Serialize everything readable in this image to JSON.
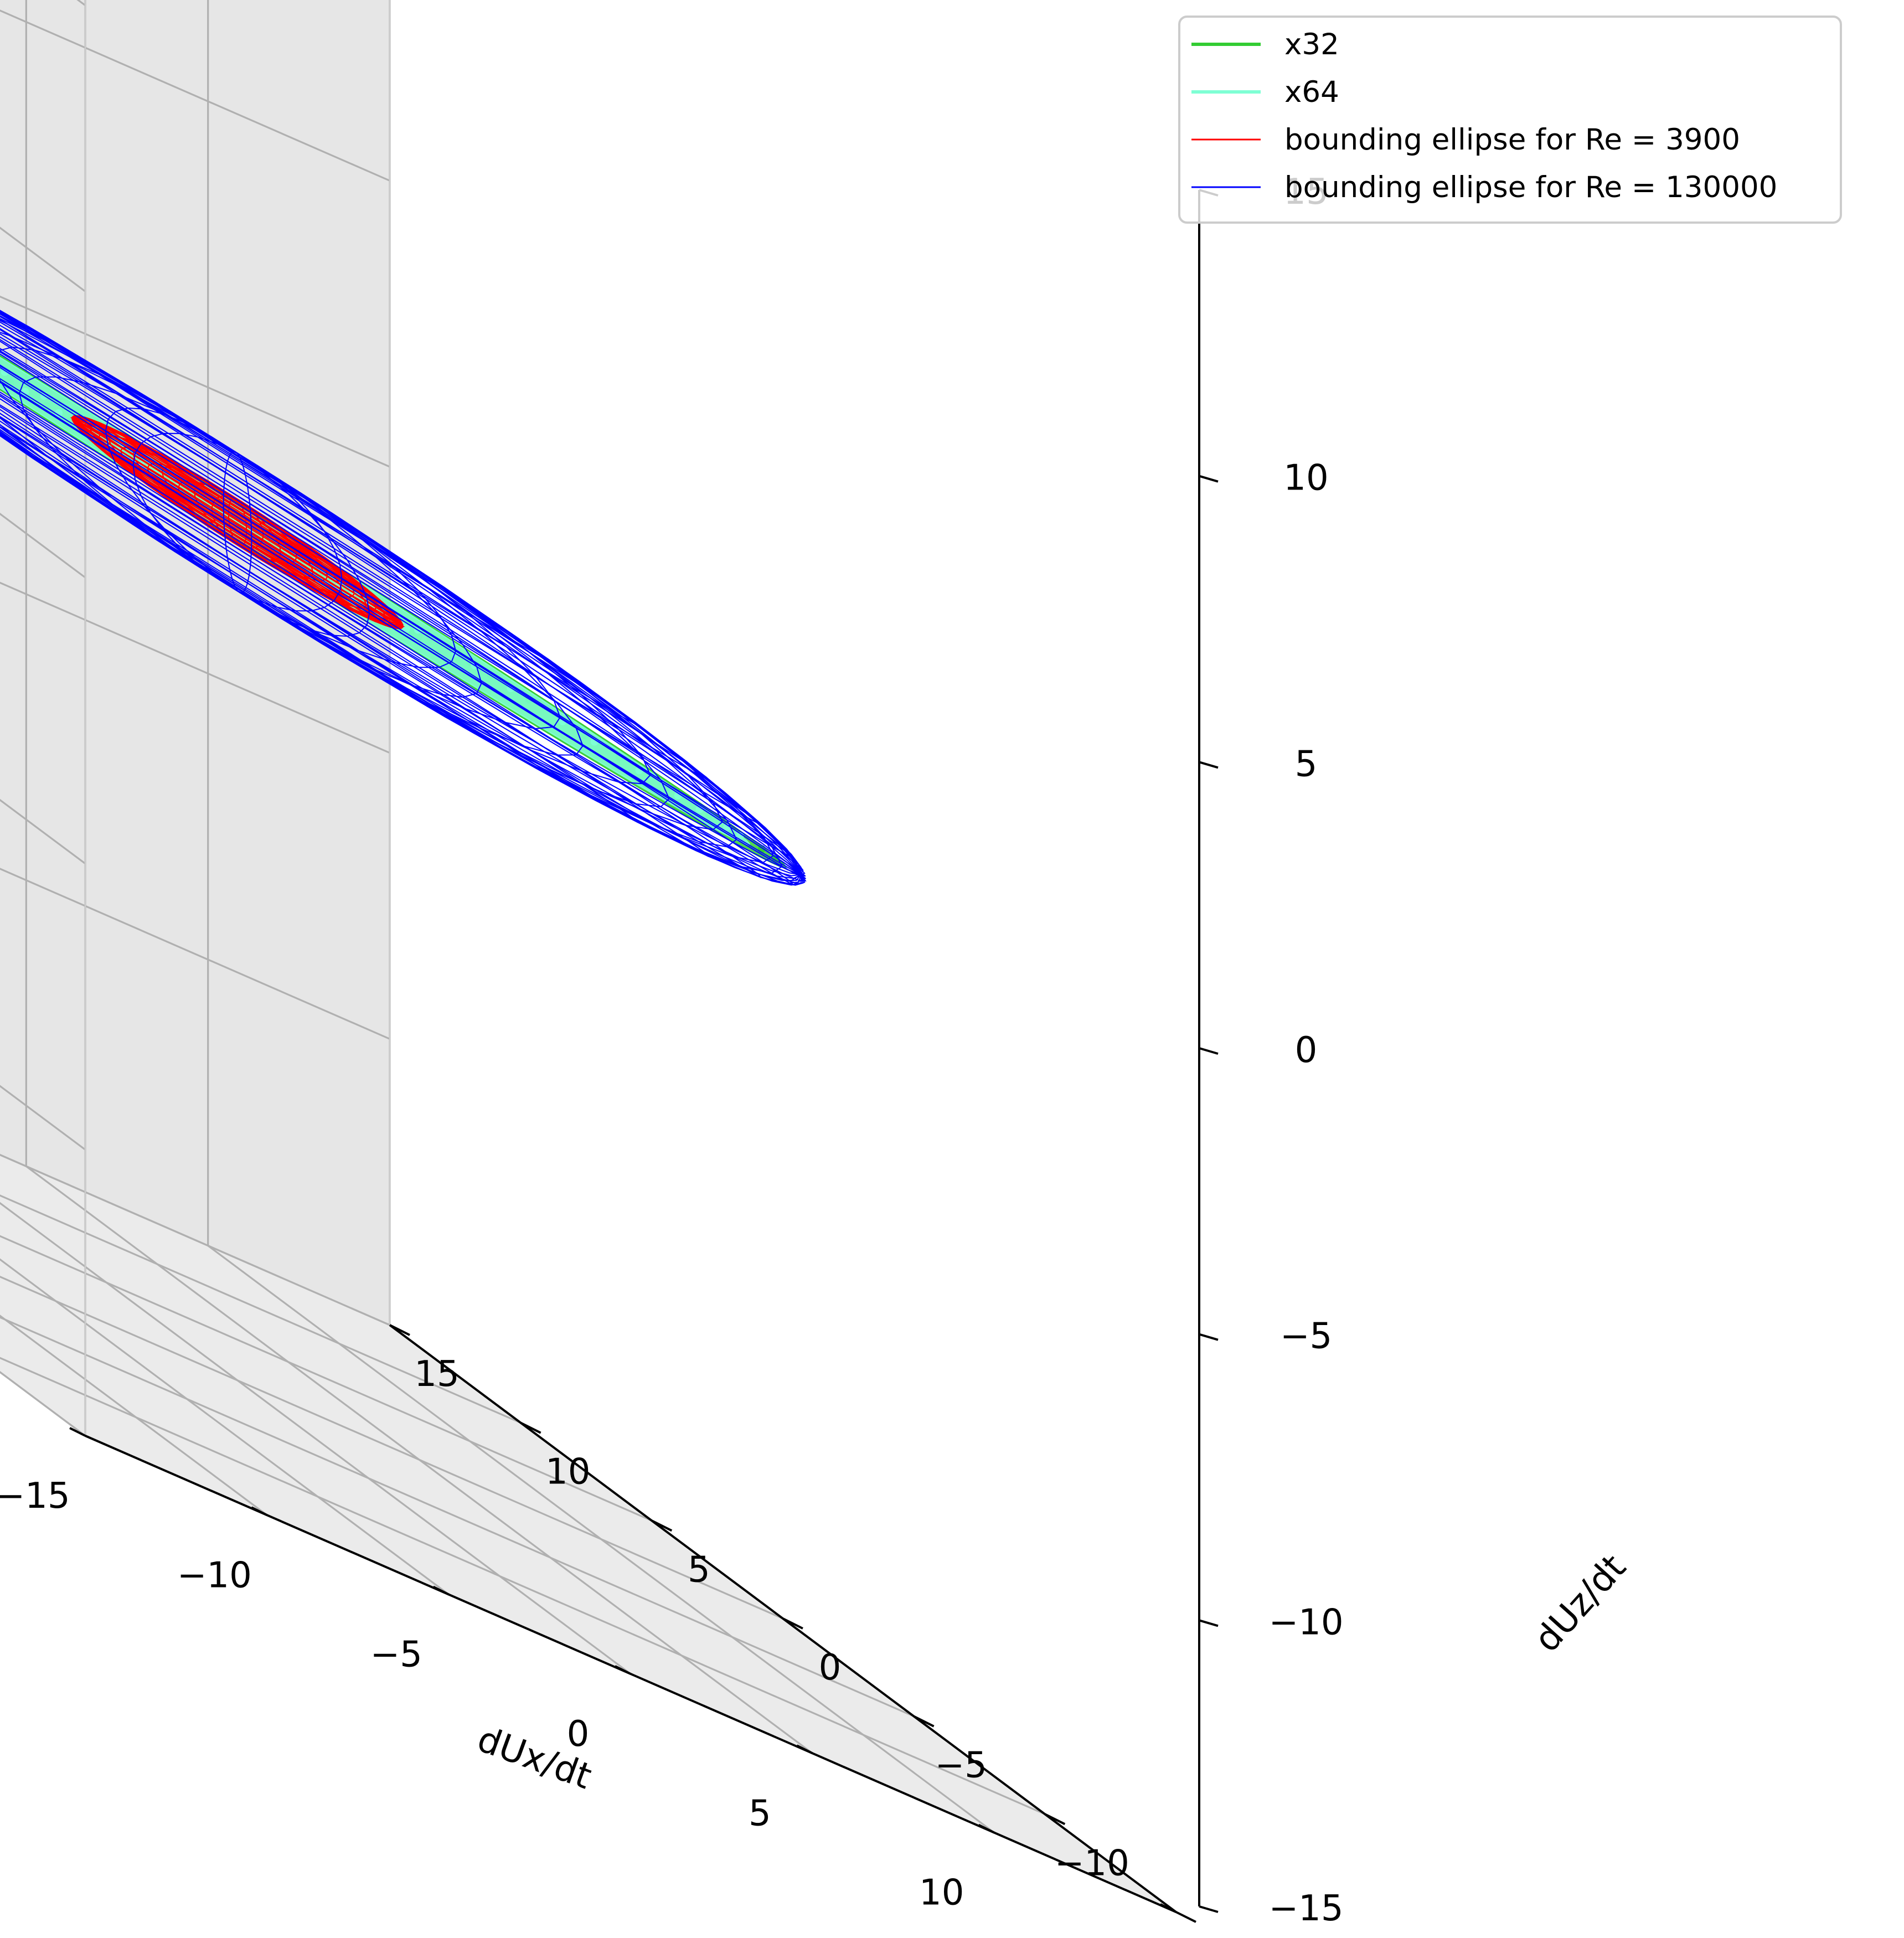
{
  "chart_data": {
    "type": "3d-wireframe",
    "title": "",
    "xlabel": "dUx/dt",
    "ylabel": "dUz/dt",
    "zlabel": "",
    "xlim": [
      -15,
      15
    ],
    "ylim": [
      -15,
      15
    ],
    "zlim": [
      -15,
      15
    ],
    "x_ticks": [
      "−15",
      "−10",
      "−5",
      "0",
      "5",
      "10",
      "15"
    ],
    "y_ticks": [
      "−15",
      "−10",
      "−5",
      "0",
      "5",
      "10",
      "15"
    ],
    "z_ticks": [
      "−15",
      "−10",
      "−5",
      "0",
      "5",
      "10",
      "15"
    ],
    "grid": true,
    "legend_position": "top-right",
    "series": [
      {
        "name": "x32",
        "kind": "scatter-surface",
        "color": "#33cc33",
        "semi_axes": [
          15,
          2.4,
          1.0
        ]
      },
      {
        "name": "x64",
        "kind": "scatter-surface",
        "color": "#7fffd4",
        "semi_axes": [
          14,
          2.2,
          0.9
        ]
      },
      {
        "name": "bounding ellipse for Re = 3900",
        "kind": "wireframe-ellipsoid",
        "color": "#ff0000",
        "semi_axes": [
          4.5,
          1.0,
          0.4
        ]
      },
      {
        "name": "bounding ellipse for Re = 130000",
        "kind": "wireframe-ellipsoid",
        "color": "#0000ff",
        "semi_axes": [
          15.5,
          2.8,
          1.2
        ]
      }
    ]
  }
}
